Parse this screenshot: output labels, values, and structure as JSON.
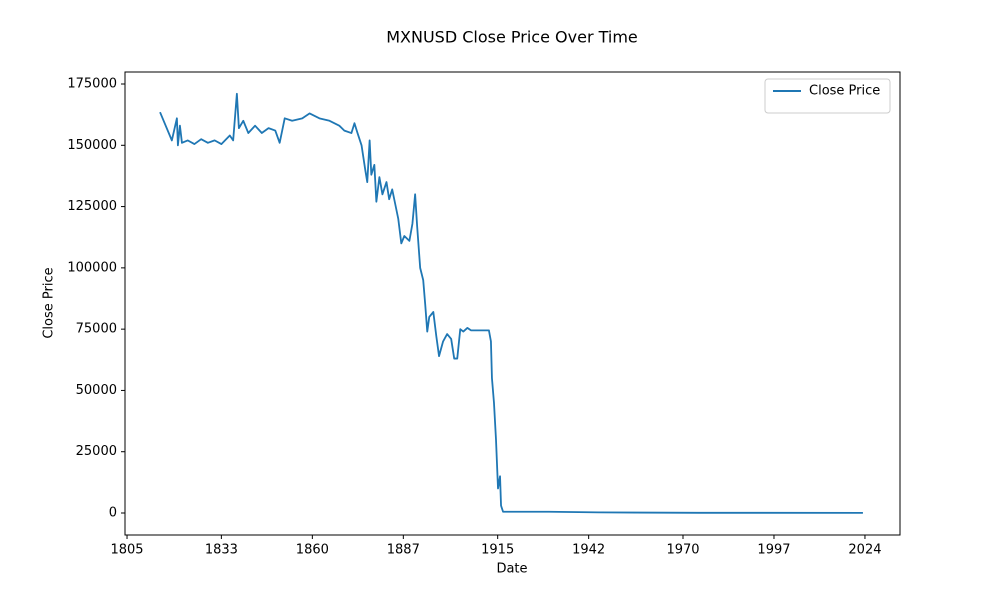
{
  "chart_data": {
    "type": "line",
    "title": "MXNUSD Close Price Over Time",
    "x_label": "Date",
    "y_label": "Close Price",
    "x": [
      1814.8,
      1818.3,
      1819.8,
      1820.1,
      1820.7,
      1821.3,
      1823,
      1825,
      1827,
      1829,
      1831,
      1833,
      1835.5,
      1836.5,
      1837.6,
      1838.2,
      1839.5,
      1841,
      1843,
      1845,
      1847,
      1849,
      1850.3,
      1851.8,
      1854,
      1857,
      1859.2,
      1862.1,
      1865.1,
      1868,
      1869.5,
      1871.6,
      1872.5,
      1873.4,
      1874.6,
      1875.7,
      1876.3,
      1877,
      1877.5,
      1878.4,
      1879,
      1879.9,
      1880.8,
      1882,
      1882.8,
      1883.7,
      1884.6,
      1885.5,
      1886.4,
      1887.3,
      1888.8,
      1889.7,
      1890.5,
      1891.1,
      1892,
      1892.9,
      1893.5,
      1894.1,
      1894.7,
      1895.9,
      1896.8,
      1897.6,
      1898.8,
      1900,
      1901.2,
      1902.1,
      1903,
      1903.9,
      1904.8,
      1906,
      1907.1,
      1912.4,
      1913,
      1913.3,
      1913.9,
      1914.5,
      1915.1,
      1915.7,
      1916,
      1916.6,
      1930.2,
      1945,
      1974.6,
      2023.4
    ],
    "series": [
      {
        "name": "Close Price",
        "color": "#1f77b4",
        "values": [
          163500,
          152000,
          161000,
          150000,
          158000,
          151000,
          152000,
          150500,
          152500,
          151000,
          152000,
          150500,
          154000,
          152000,
          171000,
          157000,
          160000,
          155000,
          158000,
          155000,
          157000,
          156000,
          151000,
          161000,
          160000,
          161000,
          163000,
          161000,
          160000,
          158000,
          156000,
          155000,
          159000,
          155000,
          150000,
          140000,
          135000,
          152000,
          138000,
          142000,
          127000,
          137000,
          130000,
          135000,
          128000,
          132000,
          126000,
          120000,
          110000,
          113000,
          111000,
          118000,
          130000,
          117000,
          100000,
          95000,
          85000,
          74000,
          80000,
          82000,
          72000,
          64000,
          70000,
          73000,
          71000,
          63000,
          63000,
          75000,
          74000,
          75500,
          74500,
          74500,
          70000,
          55000,
          45000,
          30000,
          10000,
          15000,
          3000,
          500,
          500,
          250,
          80,
          50
        ]
      }
    ],
    "xlim": [
      1804.4,
      2034.4
    ],
    "ylim": [
      -8975,
      179900
    ],
    "xticks": [
      1805,
      1833,
      1860,
      1887,
      1915,
      1942,
      1970,
      1997,
      2024
    ],
    "yticks": [
      0,
      25000,
      50000,
      75000,
      100000,
      125000,
      150000,
      175000
    ],
    "legend": "upper right"
  }
}
